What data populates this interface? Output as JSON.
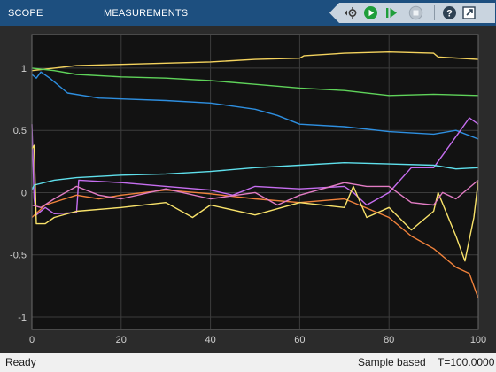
{
  "toolstrip": {
    "tabs": [
      {
        "label": "SCOPE"
      },
      {
        "label": "MEASUREMENTS"
      }
    ],
    "tools": [
      {
        "icon": "signal-selector-icon"
      },
      {
        "icon": "run-icon"
      },
      {
        "icon": "step-forward-icon"
      },
      {
        "icon": "stop-icon"
      },
      {
        "icon": "help-icon"
      },
      {
        "icon": "undock-icon"
      }
    ]
  },
  "chart_data": {
    "type": "line",
    "xlim": [
      0,
      100
    ],
    "ylim": [
      -1.1,
      1.27
    ],
    "xticks": [
      0,
      20,
      40,
      60,
      80,
      100
    ],
    "yticks": [
      -1,
      -0.5,
      0,
      0.5,
      1
    ],
    "xtick_labels": [
      "0",
      "20",
      "40",
      "60",
      "80",
      "100"
    ],
    "ytick_labels": [
      "-1",
      "-0.5",
      "0",
      "0.5",
      "1"
    ],
    "grid": true,
    "background": "#121212",
    "series": [
      {
        "color": "#f4d35e",
        "points": [
          [
            0,
            0.98
          ],
          [
            5,
            1.0
          ],
          [
            10,
            1.02
          ],
          [
            20,
            1.03
          ],
          [
            30,
            1.04
          ],
          [
            40,
            1.05
          ],
          [
            50,
            1.07
          ],
          [
            60,
            1.08
          ],
          [
            61,
            1.1
          ],
          [
            70,
            1.12
          ],
          [
            80,
            1.13
          ],
          [
            90,
            1.12
          ],
          [
            91,
            1.09
          ],
          [
            100,
            1.07
          ]
        ]
      },
      {
        "color": "#5fd35a",
        "points": [
          [
            0,
            1.0
          ],
          [
            5,
            0.98
          ],
          [
            10,
            0.95
          ],
          [
            20,
            0.93
          ],
          [
            30,
            0.92
          ],
          [
            40,
            0.9
          ],
          [
            50,
            0.87
          ],
          [
            60,
            0.84
          ],
          [
            70,
            0.82
          ],
          [
            80,
            0.78
          ],
          [
            90,
            0.79
          ],
          [
            100,
            0.78
          ]
        ]
      },
      {
        "color": "#2e8fe0",
        "points": [
          [
            0,
            0.95
          ],
          [
            1,
            0.92
          ],
          [
            2,
            0.97
          ],
          [
            4,
            0.92
          ],
          [
            8,
            0.8
          ],
          [
            15,
            0.76
          ],
          [
            30,
            0.74
          ],
          [
            40,
            0.72
          ],
          [
            50,
            0.67
          ],
          [
            55,
            0.62
          ],
          [
            60,
            0.55
          ],
          [
            70,
            0.53
          ],
          [
            80,
            0.49
          ],
          [
            90,
            0.47
          ],
          [
            95,
            0.5
          ],
          [
            100,
            0.43
          ]
        ]
      },
      {
        "color": "#c66ef0",
        "points": [
          [
            0,
            0.55
          ],
          [
            0.5,
            -0.05
          ],
          [
            1,
            -0.18
          ],
          [
            3,
            -0.12
          ],
          [
            5,
            -0.17
          ],
          [
            10,
            -0.16
          ],
          [
            10.5,
            0.1
          ],
          [
            20,
            0.08
          ],
          [
            30,
            0.05
          ],
          [
            40,
            0.02
          ],
          [
            45,
            -0.02
          ],
          [
            50,
            0.05
          ],
          [
            60,
            0.03
          ],
          [
            70,
            0.05
          ],
          [
            72,
            0.0
          ],
          [
            75,
            -0.1
          ],
          [
            80,
            0.0
          ],
          [
            85,
            0.2
          ],
          [
            90,
            0.2
          ],
          [
            91,
            0.25
          ],
          [
            95,
            0.45
          ],
          [
            98,
            0.6
          ],
          [
            100,
            0.55
          ]
        ]
      },
      {
        "color": "#5fe0ec",
        "points": [
          [
            0,
            0.02
          ],
          [
            0.5,
            0.06
          ],
          [
            5,
            0.1
          ],
          [
            10,
            0.12
          ],
          [
            20,
            0.14
          ],
          [
            30,
            0.15
          ],
          [
            40,
            0.17
          ],
          [
            50,
            0.2
          ],
          [
            60,
            0.22
          ],
          [
            70,
            0.24
          ],
          [
            80,
            0.23
          ],
          [
            90,
            0.22
          ],
          [
            95,
            0.19
          ],
          [
            100,
            0.2
          ]
        ]
      },
      {
        "color": "#f0823c",
        "points": [
          [
            0,
            -0.2
          ],
          [
            3,
            -0.1
          ],
          [
            10,
            -0.02
          ],
          [
            15,
            -0.05
          ],
          [
            20,
            -0.02
          ],
          [
            30,
            0.02
          ],
          [
            40,
            -0.01
          ],
          [
            50,
            -0.05
          ],
          [
            60,
            -0.08
          ],
          [
            70,
            -0.05
          ],
          [
            80,
            -0.2
          ],
          [
            85,
            -0.35
          ],
          [
            90,
            -0.45
          ],
          [
            95,
            -0.6
          ],
          [
            98,
            -0.65
          ],
          [
            100,
            -0.85
          ]
        ]
      },
      {
        "color": "#f8e26a",
        "points": [
          [
            0,
            0.35
          ],
          [
            0.5,
            0.38
          ],
          [
            1,
            -0.25
          ],
          [
            3,
            -0.25
          ],
          [
            5,
            -0.2
          ],
          [
            10,
            -0.15
          ],
          [
            20,
            -0.12
          ],
          [
            30,
            -0.08
          ],
          [
            36,
            -0.2
          ],
          [
            40,
            -0.1
          ],
          [
            50,
            -0.18
          ],
          [
            60,
            -0.08
          ],
          [
            70,
            -0.12
          ],
          [
            72,
            0.05
          ],
          [
            75,
            -0.2
          ],
          [
            80,
            -0.12
          ],
          [
            85,
            -0.3
          ],
          [
            90,
            -0.15
          ],
          [
            91,
            0.0
          ],
          [
            95,
            -0.35
          ],
          [
            97,
            -0.55
          ],
          [
            99,
            -0.2
          ],
          [
            100,
            0.1
          ]
        ]
      },
      {
        "color": "#e27cc4",
        "points": [
          [
            0,
            -0.1
          ],
          [
            2,
            -0.12
          ],
          [
            5,
            -0.05
          ],
          [
            10,
            0.05
          ],
          [
            15,
            -0.02
          ],
          [
            20,
            -0.05
          ],
          [
            30,
            0.03
          ],
          [
            40,
            -0.05
          ],
          [
            50,
            0.0
          ],
          [
            55,
            -0.1
          ],
          [
            60,
            -0.02
          ],
          [
            70,
            0.08
          ],
          [
            75,
            0.05
          ],
          [
            80,
            0.05
          ],
          [
            85,
            -0.08
          ],
          [
            90,
            -0.1
          ],
          [
            92,
            0.0
          ],
          [
            95,
            -0.05
          ],
          [
            100,
            0.1
          ]
        ]
      }
    ]
  },
  "status": {
    "left": "Ready",
    "mode": "Sample based",
    "time": "T=100.0000"
  }
}
